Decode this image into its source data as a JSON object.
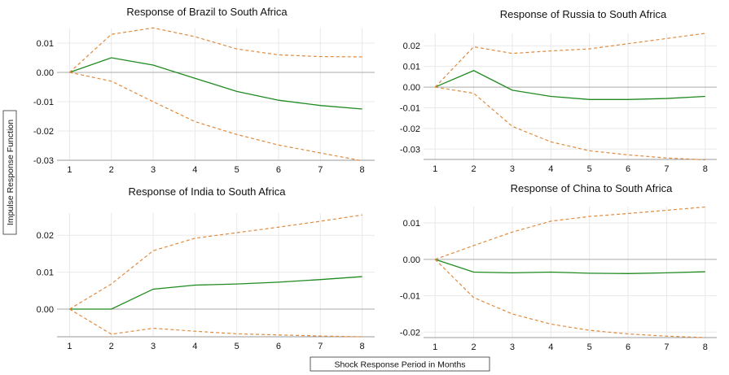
{
  "y_axis_label": "Impulse Response Function",
  "x_axis_label": "Shock Response Period in Months",
  "colors": {
    "response": "#1f8a1f",
    "bands": "#e08a3c",
    "grid": "#e8e8e8",
    "zero_line": "#aaaaaa",
    "axis": "#999999"
  },
  "chart_data": [
    {
      "type": "line",
      "title": "Response of Brazil to South Africa",
      "x": [
        1,
        2,
        3,
        4,
        5,
        6,
        7,
        8
      ],
      "xlim": [
        0.7,
        8.3
      ],
      "ylim": [
        -0.03,
        0.015
      ],
      "yticks": [
        "0.01",
        "0.00",
        "-0.01",
        "-0.02",
        "-0.03"
      ],
      "ytick_values": [
        0.01,
        0.0,
        -0.01,
        -0.02,
        -0.03
      ],
      "series": [
        {
          "role": "response",
          "values": [
            0.0,
            0.005,
            0.0025,
            -0.002,
            -0.0065,
            -0.0095,
            -0.0113,
            -0.0125
          ]
        },
        {
          "role": "upper",
          "values": [
            0.0,
            0.013,
            0.0152,
            0.0122,
            0.008,
            0.006,
            0.0054,
            0.0053
          ]
        },
        {
          "role": "lower",
          "values": [
            0.0,
            -0.003,
            -0.01,
            -0.0168,
            -0.0212,
            -0.0248,
            -0.0275,
            -0.0302
          ]
        }
      ]
    },
    {
      "type": "line",
      "title": "Response of Russia to South Africa",
      "x": [
        1,
        2,
        3,
        4,
        5,
        6,
        7,
        8
      ],
      "xlim": [
        0.7,
        8.3
      ],
      "ylim": [
        -0.035,
        0.026
      ],
      "yticks": [
        "0.02",
        "0.01",
        "0.00",
        "-0.01",
        "-0.02",
        "-0.03"
      ],
      "ytick_values": [
        0.02,
        0.01,
        0.0,
        -0.01,
        -0.02,
        -0.03
      ],
      "series": [
        {
          "role": "response",
          "values": [
            0.0,
            0.008,
            -0.0015,
            -0.0045,
            -0.006,
            -0.006,
            -0.0055,
            -0.0045
          ]
        },
        {
          "role": "upper",
          "values": [
            0.0,
            0.0195,
            0.0163,
            0.0175,
            0.0185,
            0.021,
            0.0235,
            0.026
          ]
        },
        {
          "role": "lower",
          "values": [
            0.0,
            -0.003,
            -0.019,
            -0.0265,
            -0.0308,
            -0.0328,
            -0.0343,
            -0.0352
          ]
        }
      ]
    },
    {
      "type": "line",
      "title": "Response of India to South Africa",
      "x": [
        1,
        2,
        3,
        4,
        5,
        6,
        7,
        8
      ],
      "xlim": [
        0.7,
        8.3
      ],
      "ylim": [
        -0.0075,
        0.026
      ],
      "yticks": [
        "0.02",
        "0.01",
        "0.00"
      ],
      "ytick_values": [
        0.02,
        0.01,
        0.0
      ],
      "series": [
        {
          "role": "response",
          "values": [
            0.0,
            0.0,
            0.0054,
            0.0065,
            0.0068,
            0.0073,
            0.008,
            0.0088
          ]
        },
        {
          "role": "upper",
          "values": [
            0.0,
            0.0068,
            0.0158,
            0.0192,
            0.0207,
            0.0222,
            0.0238,
            0.0255
          ]
        },
        {
          "role": "lower",
          "values": [
            0.0,
            -0.0068,
            -0.0052,
            -0.006,
            -0.0067,
            -0.007,
            -0.0073,
            -0.0075
          ]
        }
      ]
    },
    {
      "type": "line",
      "title": "Response of China to South Africa",
      "x": [
        1,
        2,
        3,
        4,
        5,
        6,
        7,
        8
      ],
      "xlim": [
        0.7,
        8.3
      ],
      "ylim": [
        -0.0215,
        0.0145
      ],
      "yticks": [
        "0.01",
        "0.00",
        "-0.01",
        "-0.02"
      ],
      "ytick_values": [
        0.01,
        0.0,
        -0.01,
        -0.02
      ],
      "series": [
        {
          "role": "response",
          "values": [
            0.0,
            -0.0035,
            -0.0037,
            -0.0035,
            -0.0038,
            -0.0039,
            -0.0037,
            -0.0034
          ]
        },
        {
          "role": "upper",
          "values": [
            0.0,
            0.0038,
            0.0075,
            0.0105,
            0.0118,
            0.0126,
            0.0135,
            0.0144
          ]
        },
        {
          "role": "lower",
          "values": [
            0.0,
            -0.0105,
            -0.015,
            -0.0178,
            -0.0195,
            -0.0205,
            -0.0211,
            -0.0215
          ]
        }
      ]
    }
  ]
}
